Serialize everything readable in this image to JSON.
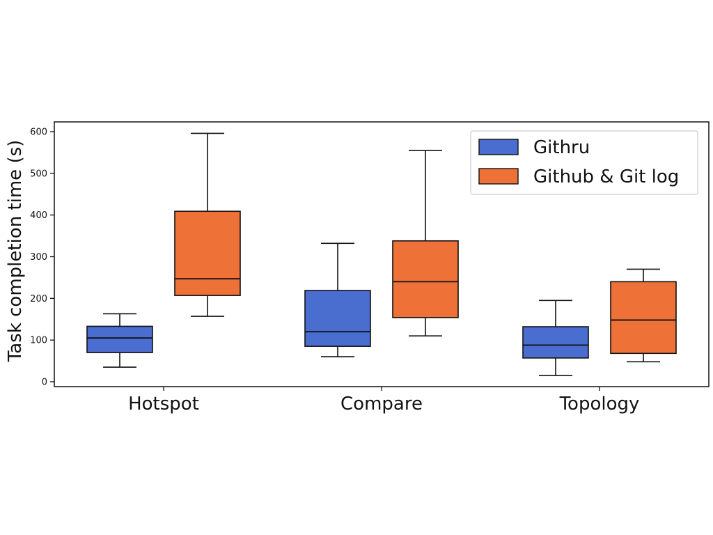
{
  "chart_data": {
    "type": "box",
    "title": "",
    "xlabel": "",
    "ylabel": "Task completion time (s)",
    "ylim": [
      0,
      620
    ],
    "yticks": [
      0,
      100,
      200,
      300,
      400,
      500,
      600
    ],
    "categories": [
      "Hotspot",
      "Compare",
      "Topology"
    ],
    "legend_position": "top-right",
    "grid": false,
    "series": [
      {
        "name": "Githru",
        "color": "#4a6ed0",
        "boxes": [
          {
            "min": 35,
            "q1": 70,
            "median": 105,
            "q3": 133,
            "max": 163
          },
          {
            "min": 60,
            "q1": 85,
            "median": 120,
            "q3": 219,
            "max": 332
          },
          {
            "min": 15,
            "q1": 57,
            "median": 88,
            "q3": 132,
            "max": 195
          }
        ]
      },
      {
        "name": "Github & Git log",
        "color": "#ee7138",
        "boxes": [
          {
            "min": 157,
            "q1": 207,
            "median": 247,
            "q3": 409,
            "max": 596
          },
          {
            "min": 110,
            "q1": 154,
            "median": 240,
            "q3": 338,
            "max": 555
          },
          {
            "min": 48,
            "q1": 68,
            "median": 148,
            "q3": 240,
            "max": 270
          }
        ]
      }
    ]
  }
}
